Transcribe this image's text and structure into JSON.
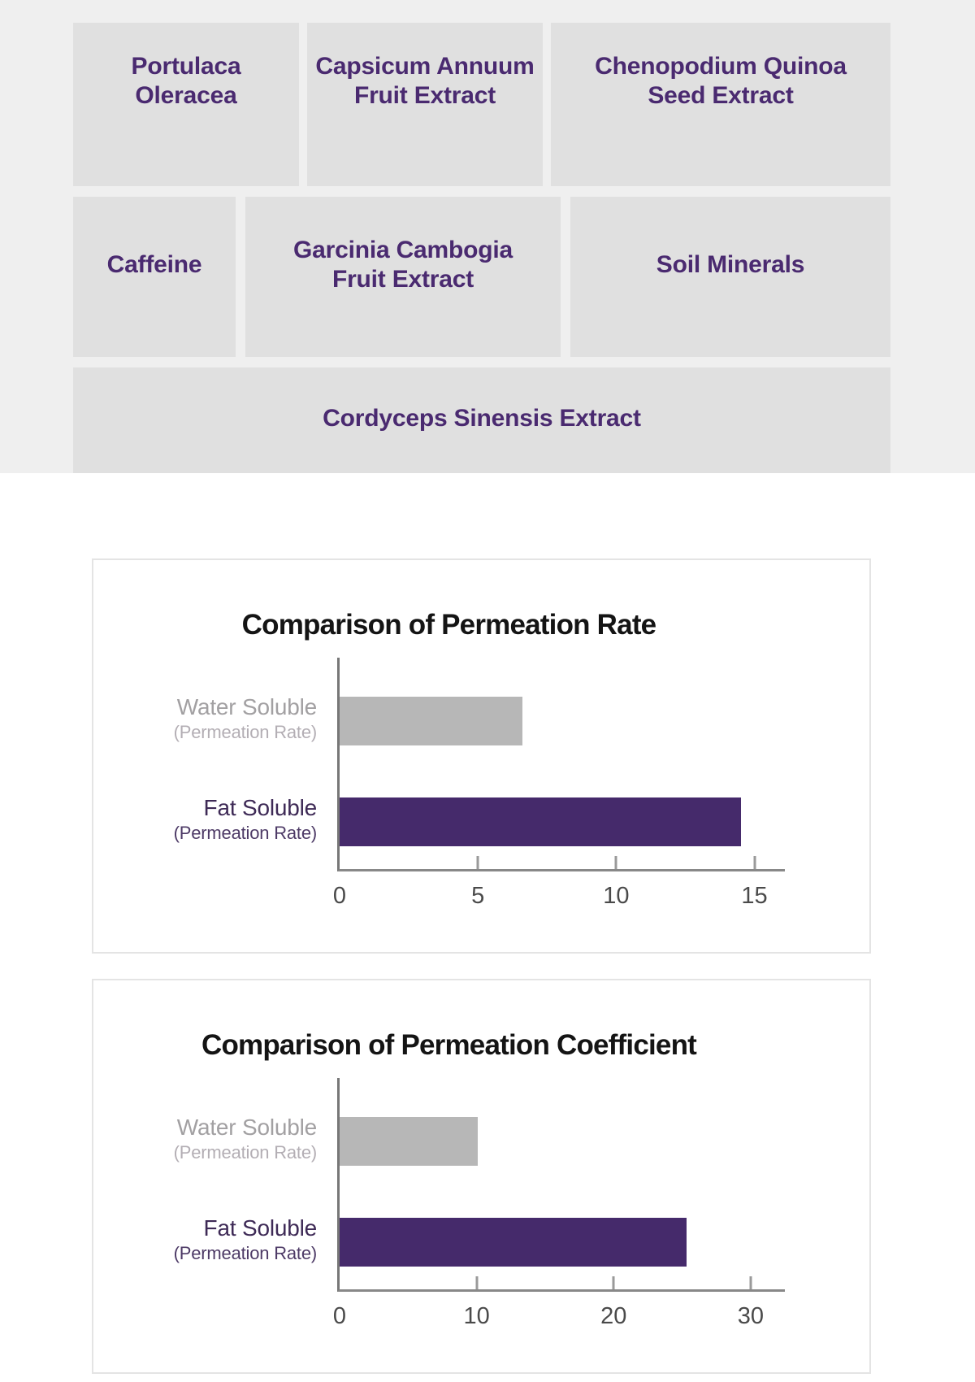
{
  "ingredients": {
    "panel_bg": "#efefef",
    "box_bg": "#e0e0e0",
    "text_color": "#4a2a70",
    "row1": [
      "Portulaca\nOleracea",
      "Capsicum Annuum\nFruit Extract",
      "Chenopodium Quinoa\nSeed Extract"
    ],
    "row2": [
      "Caffeine",
      "Garcinia Cambogia\nFruit Extract",
      "Soil Minerals"
    ],
    "row3": [
      "Cordyceps Sinensis Extract"
    ]
  },
  "chart_data": [
    {
      "type": "bar",
      "orientation": "horizontal",
      "title": "Comparison of Permeation Rate",
      "bars": [
        {
          "label": "Water Soluble",
          "sublabel": "(Permeation Rate)",
          "value": 6.6,
          "color": "#b7b7b7",
          "label_color": "#a2a0a2",
          "sublabel_color": "#b3aeb4"
        },
        {
          "label": "Fat Soluble",
          "sublabel": "(Permeation Rate)",
          "value": 14.5,
          "color": "#452a6b",
          "label_color": "#3e2a56",
          "sublabel_color": "#4d3a66"
        }
      ],
      "xticks": [
        0,
        5,
        10,
        15
      ],
      "xmax": 16.1,
      "grid": false,
      "legend": false
    },
    {
      "type": "bar",
      "orientation": "horizontal",
      "title": "Comparison of Permeation Coefficient",
      "bars": [
        {
          "label": "Water Soluble",
          "sublabel": "(Permeation Rate)",
          "value": 10.1,
          "color": "#b7b7b7",
          "label_color": "#a2a0a2",
          "sublabel_color": "#b3aeb4"
        },
        {
          "label": "Fat Soluble",
          "sublabel": "(Permeation Rate)",
          "value": 25.3,
          "color": "#452a6b",
          "label_color": "#3e2a56",
          "sublabel_color": "#4d3a66"
        }
      ],
      "xticks": [
        0,
        10,
        20,
        30
      ],
      "xmax": 32.5,
      "grid": false,
      "legend": false
    }
  ]
}
